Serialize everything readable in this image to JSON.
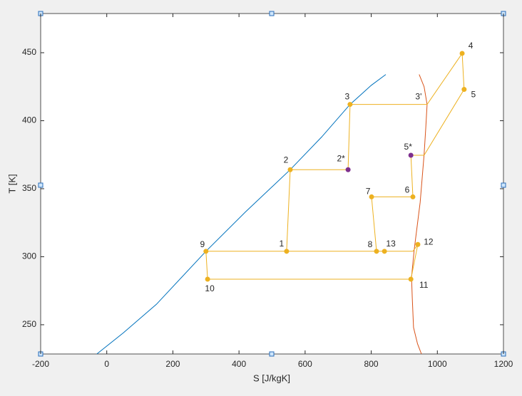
{
  "chart_data": {
    "type": "line",
    "xlabel": "S [J/kgK]",
    "ylabel": "T [K]",
    "xlim": [
      -200,
      1200
    ],
    "ylim": [
      228.5,
      478.8
    ],
    "xticks": [
      -200,
      0,
      200,
      400,
      600,
      800,
      1000,
      1200
    ],
    "yticks": [
      250,
      300,
      350,
      400,
      450
    ],
    "series": [
      {
        "color": "#0072bd",
        "x": [
          -30,
          50,
          150,
          300,
          420,
          555,
          650,
          736,
          800,
          844
        ],
        "values": [
          228.5,
          244,
          265,
          304,
          333,
          364,
          388,
          412,
          426,
          434
        ]
      },
      {
        "color": "#d95319",
        "x": [
          945,
          960,
          969,
          965,
          960,
          948,
          930,
          922,
          924,
          928,
          940,
          952
        ],
        "values": [
          434,
          425,
          412,
          395,
          375,
          340,
          305,
          285,
          270,
          248,
          236,
          228.5
        ]
      },
      {
        "color": "#edb120",
        "x": [
          305,
          300,
          544,
          555,
          730,
          736,
          969,
          1075,
          1081,
          960,
          920,
          926,
          801,
          816,
          840,
          926,
          941,
          920,
          305,
          null,
          544,
          816
        ],
        "values": [
          283.5,
          304,
          304,
          364,
          364,
          412,
          412,
          449.5,
          423,
          374.6,
          374.6,
          344,
          344,
          304,
          304,
          304,
          309,
          283.5,
          283.5,
          null,
          304,
          304
        ],
        "labels": [
          "10",
          "9",
          "1",
          "2",
          "2*",
          "3",
          "3'",
          "4",
          "5",
          null,
          "5*",
          "6",
          "7",
          "8",
          "13",
          null,
          "12",
          "11",
          null,
          null,
          null,
          null
        ],
        "marker_colors": [
          "#edb120",
          "#edb120",
          "#edb120",
          "#edb120",
          "#7e2f8e",
          "#edb120",
          null,
          "#edb120",
          "#edb120",
          null,
          "#7e2f8e",
          "#edb120",
          "#edb120",
          "#edb120",
          "#edb120",
          null,
          "#edb120",
          "#edb120",
          null,
          null,
          null,
          null
        ]
      }
    ]
  }
}
